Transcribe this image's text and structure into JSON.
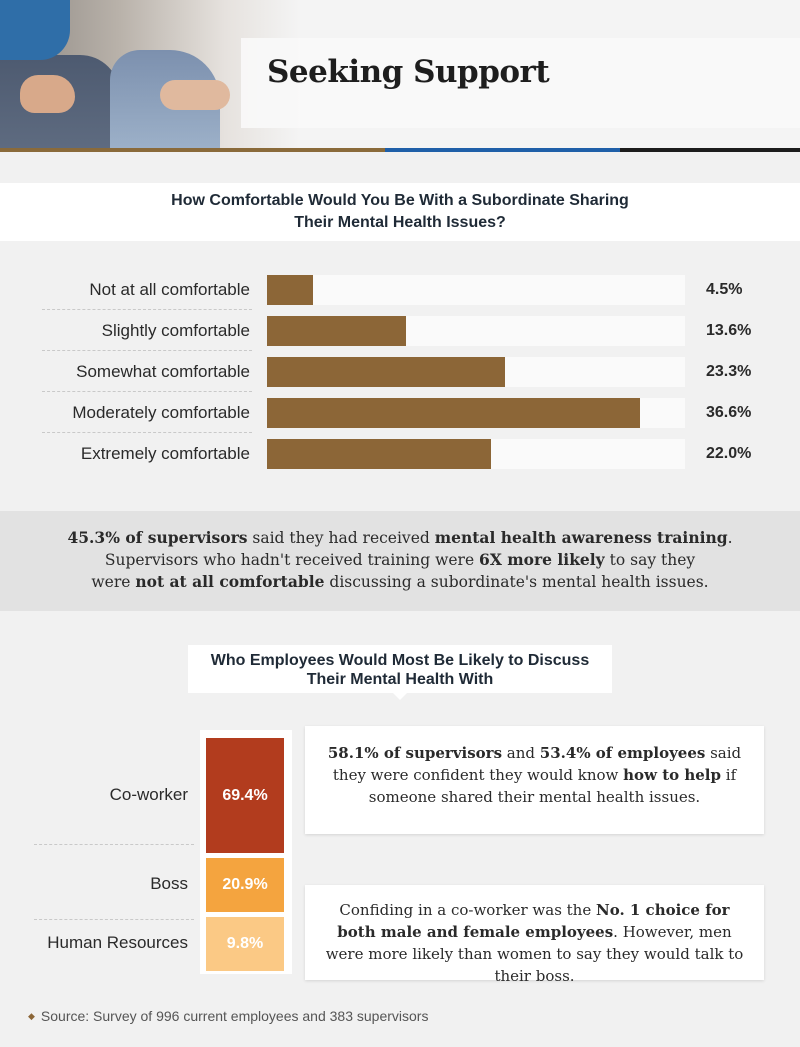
{
  "header": {
    "title": "Seeking Support"
  },
  "colors": {
    "bar": "#8c6637",
    "coworker": "#b23c1e",
    "boss": "#f4a43f",
    "hr": "#fbc985",
    "stripe_left": "#8a6a3a",
    "stripe_mid": "#1f5fa8",
    "stripe_right": "#1c1c1c"
  },
  "chart_data": [
    {
      "type": "bar",
      "orientation": "horizontal",
      "title": "How Comfortable Would You Be With a Subordinate Sharing Their Mental Health Issues?",
      "categories": [
        "Not at all comfortable",
        "Slightly comfortable",
        "Somewhat comfortable",
        "Moderately comfortable",
        "Extremely comfortable"
      ],
      "values": [
        4.5,
        13.6,
        23.3,
        36.6,
        22.0
      ],
      "value_labels": [
        "4.5%",
        "13.6%",
        "23.3%",
        "36.6%",
        "22.0%"
      ],
      "unit": "%",
      "xlim": [
        0,
        41
      ]
    },
    {
      "type": "bar",
      "orientation": "stacked-vertical",
      "title": "Who Employees Would Most Be Likely to Discuss Their Mental Health With",
      "categories": [
        "Co-worker",
        "Boss",
        "Human Resources"
      ],
      "values": [
        69.4,
        20.9,
        9.8
      ],
      "value_labels": [
        "69.4%",
        "20.9%",
        "9.8%"
      ],
      "unit": "%"
    }
  ],
  "stat_band": {
    "line1_bold1": "45.3% of supervisors",
    "line1_mid": " said they had received ",
    "line1_bold2": "mental health awareness training",
    "line1_end": ".",
    "line2_start": "Supervisors who hadn't received training were ",
    "line2_bold": "6X more likely",
    "line2_end": " to say they",
    "line3_start": "were ",
    "line3_bold": "not at all comfortable",
    "line3_end": " discussing a subordinate's mental health issues."
  },
  "note1": {
    "bold1": "58.1% of supervisors",
    "mid1": " and ",
    "bold2": "53.4% of employees",
    "mid2": " said they were confident they would know ",
    "bold3": "how to help",
    "end": " if someone shared their mental health issues."
  },
  "note2": {
    "start": "Confiding in a co-worker was the ",
    "bold": "No. 1 choice for both male and female employees",
    "end": ". However, men were more likely than women to say they would talk to their boss."
  },
  "source": {
    "text": "Source: Survey of 996 current employees and 383 supervisors"
  }
}
